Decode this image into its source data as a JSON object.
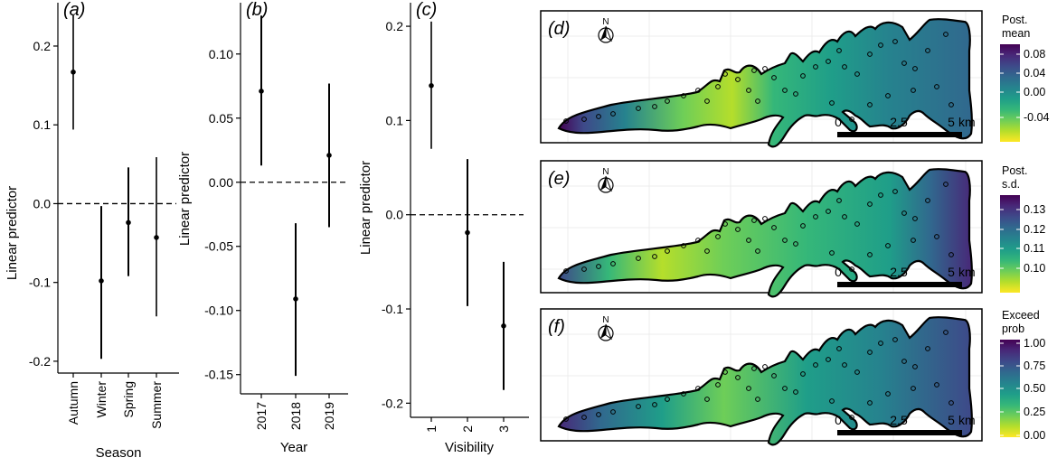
{
  "chart_data": [
    {
      "type": "scatter",
      "panel": "(a)",
      "panel_letter": "a",
      "xlabel": "Season",
      "ylabel": "Linear predictor",
      "categories": [
        "Autumn",
        "Winter",
        "Spring",
        "Summer"
      ],
      "estimate": [
        0.167,
        -0.098,
        -0.024,
        -0.043
      ],
      "lower": [
        0.094,
        -0.197,
        -0.092,
        -0.143
      ],
      "upper": [
        0.239,
        -0.003,
        0.046,
        0.059
      ],
      "ylim": [
        -0.215,
        0.255
      ],
      "yticks": [
        0.2,
        0.1,
        0.0,
        -0.1,
        -0.2
      ],
      "ytick_labels": [
        "0.2",
        "0.1",
        "0.0",
        "-0.1",
        "-0.2"
      ],
      "reference_line": 0
    },
    {
      "type": "scatter",
      "panel": "(b)",
      "panel_letter": "b",
      "xlabel": "Year",
      "ylabel": "Linear predictor",
      "categories": [
        "2017",
        "2018",
        "2019"
      ],
      "estimate": [
        0.071,
        -0.091,
        0.021
      ],
      "lower": [
        0.013,
        -0.151,
        -0.035
      ],
      "upper": [
        0.13,
        -0.032,
        0.077
      ],
      "ylim": [
        -0.165,
        0.14
      ],
      "yticks": [
        0.1,
        0.05,
        0.0,
        -0.05,
        -0.1,
        -0.15
      ],
      "ytick_labels": [
        "0.10",
        "0.05",
        "0.00",
        "-0.05",
        "-0.10",
        "-0.15"
      ],
      "reference_line": 0
    },
    {
      "type": "scatter",
      "panel": "(c)",
      "panel_letter": "c",
      "xlabel": "Visibility",
      "ylabel": "Linear predictor",
      "categories": [
        "1",
        "2",
        "3"
      ],
      "estimate": [
        0.137,
        -0.019,
        -0.118
      ],
      "lower": [
        0.07,
        -0.097,
        -0.186
      ],
      "upper": [
        0.205,
        0.059,
        -0.05
      ],
      "ylim": [
        -0.215,
        0.225
      ],
      "yticks": [
        0.2,
        0.1,
        0.0,
        -0.1,
        -0.2
      ],
      "ytick_labels": [
        "0.2",
        "0.1",
        "0.0",
        "-0.1",
        "-0.2"
      ],
      "reference_line": 0
    },
    {
      "type": "heatmap",
      "panel": "(d)",
      "panel_letter": "d",
      "legend_title": [
        "Post.",
        "mean"
      ],
      "colorbar_ticks": [
        "0.08",
        "0.04",
        "0.00",
        "-0.04"
      ],
      "colorscale": "viridis",
      "scalebar_labels": [
        "0",
        "2.5",
        "5",
        "km"
      ],
      "north_label": "N"
    },
    {
      "type": "heatmap",
      "panel": "(e)",
      "panel_letter": "e",
      "legend_title": [
        "Post.",
        "s.d."
      ],
      "colorbar_ticks": [
        "0.13",
        "0.12",
        "0.11",
        "0.10"
      ],
      "colorscale": "viridis",
      "scalebar_labels": [
        "0",
        "2.5",
        "5",
        "km"
      ],
      "north_label": "N"
    },
    {
      "type": "heatmap",
      "panel": "(f)",
      "panel_letter": "f",
      "legend_title": [
        "Exceed",
        "prob"
      ],
      "colorbar_ticks": [
        "1.00",
        "0.75",
        "0.50",
        "0.25",
        "0.00"
      ],
      "colorscale": "viridis",
      "scalebar_labels": [
        "0",
        "2.5",
        "5",
        "km"
      ],
      "north_label": "N"
    }
  ],
  "colors": {
    "viridis": [
      "#fde725",
      "#b5de2b",
      "#6ece58",
      "#35b779",
      "#1f9e89",
      "#26828e",
      "#31688e",
      "#3e4989",
      "#482878",
      "#440154"
    ],
    "grid": "#ececec",
    "outline": "#000000"
  }
}
